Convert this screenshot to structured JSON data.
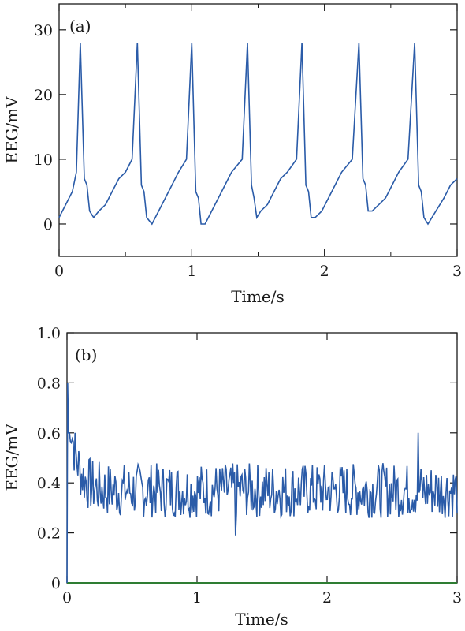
{
  "chart_data": [
    {
      "type": "line",
      "panel_label": "(a)",
      "xlabel": "Time/s",
      "ylabel": "EEG/mV",
      "xlim": [
        0,
        3
      ],
      "ylim": [
        -5,
        34
      ],
      "xticks": [
        0,
        1,
        2,
        3
      ],
      "xtick_labels": [
        "0",
        "1",
        "2",
        "3"
      ],
      "yticks": [
        0,
        10,
        20,
        30
      ],
      "ytick_labels": [
        "0",
        "10",
        "20",
        "30"
      ],
      "grid": false,
      "line_color": "#2a5ba8",
      "spike_times": [
        0.16,
        0.59,
        1.0,
        1.42,
        1.83,
        2.26,
        2.68
      ],
      "spike_peak": 28,
      "series": [
        {
          "x": [
            0,
            0.05,
            0.1,
            0.13,
            0.16,
            0.19,
            0.21,
            0.23,
            0.26,
            0.3,
            0.35,
            0.4,
            0.45,
            0.5,
            0.55,
            0.59,
            0.62,
            0.64,
            0.66,
            0.7,
            0.75,
            0.8,
            0.85,
            0.9,
            0.96,
            1.0,
            1.03,
            1.05,
            1.07,
            1.1,
            1.15,
            1.2,
            1.25,
            1.3,
            1.38,
            1.42,
            1.45,
            1.47,
            1.49,
            1.52,
            1.57,
            1.62,
            1.67,
            1.72,
            1.79,
            1.83,
            1.86,
            1.88,
            1.9,
            1.93,
            1.98,
            2.03,
            2.08,
            2.13,
            2.21,
            2.26,
            2.29,
            2.31,
            2.33,
            2.36,
            2.41,
            2.46,
            2.51,
            2.56,
            2.63,
            2.68,
            2.71,
            2.73,
            2.75,
            2.78,
            2.84,
            2.9,
            2.95,
            3.0
          ],
          "y": [
            1,
            3,
            5,
            8,
            28,
            7,
            6,
            2,
            1,
            2,
            3,
            5,
            7,
            8,
            10,
            28,
            6,
            5,
            1,
            0,
            2,
            4,
            6,
            8,
            10,
            28,
            5,
            4,
            0,
            0,
            2,
            4,
            6,
            8,
            10,
            28,
            6,
            4,
            1,
            2,
            3,
            5,
            7,
            8,
            10,
            28,
            6,
            5,
            1,
            1,
            2,
            4,
            6,
            8,
            10,
            28,
            7,
            6,
            2,
            2,
            3,
            4,
            6,
            8,
            10,
            28,
            6,
            5,
            1,
            0,
            2,
            4,
            6,
            7
          ]
        }
      ]
    },
    {
      "type": "line",
      "panel_label": "(b)",
      "xlabel": "Time/s",
      "ylabel": "EEG/mV",
      "xlim": [
        0,
        3
      ],
      "ylim": [
        0,
        1.0
      ],
      "xticks": [
        0,
        1,
        2,
        3
      ],
      "xtick_labels": [
        "0",
        "1",
        "2",
        "3"
      ],
      "yticks": [
        0,
        0.2,
        0.4,
        0.6,
        0.8,
        1.0
      ],
      "ytick_labels": [
        "0",
        "0.2",
        "0.4",
        "0.6",
        "0.8",
        "1.0"
      ],
      "grid": false,
      "line_color": "#2a5ba8",
      "baseline_color": "#2e7d32",
      "initial_value": 0.8,
      "mean_value": 0.37,
      "min_value": 0.19,
      "max_value": 0.6
    }
  ]
}
